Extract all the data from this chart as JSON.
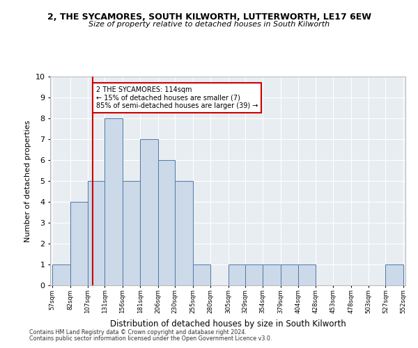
{
  "title1": "2, THE SYCAMORES, SOUTH KILWORTH, LUTTERWORTH, LE17 6EW",
  "title2": "Size of property relative to detached houses in South Kilworth",
  "xlabel": "Distribution of detached houses by size in South Kilworth",
  "ylabel": "Number of detached properties",
  "footnote1": "Contains HM Land Registry data © Crown copyright and database right 2024.",
  "footnote2": "Contains public sector information licensed under the Open Government Licence v3.0.",
  "annotation_line1": "2 THE SYCAMORES: 114sqm",
  "annotation_line2": "← 15% of detached houses are smaller (7)",
  "annotation_line3": "85% of semi-detached houses are larger (39) →",
  "property_size": 114,
  "bar_edges": [
    57,
    82,
    107,
    131,
    156,
    181,
    206,
    230,
    255,
    280,
    305,
    329,
    354,
    379,
    404,
    428,
    453,
    478,
    503,
    527,
    552
  ],
  "bar_heights": [
    1,
    4,
    5,
    8,
    5,
    7,
    6,
    5,
    1,
    0,
    1,
    1,
    1,
    1,
    1,
    0,
    0,
    0,
    0,
    1,
    0
  ],
  "bar_fill_color": "#ccd9e8",
  "bar_edge_color": "#4d79a8",
  "marker_line_color": "#cc0000",
  "annotation_box_edge_color": "#cc0000",
  "background_color": "#e8edf2",
  "ylim": [
    0,
    10
  ],
  "yticks": [
    0,
    1,
    2,
    3,
    4,
    5,
    6,
    7,
    8,
    9,
    10
  ]
}
